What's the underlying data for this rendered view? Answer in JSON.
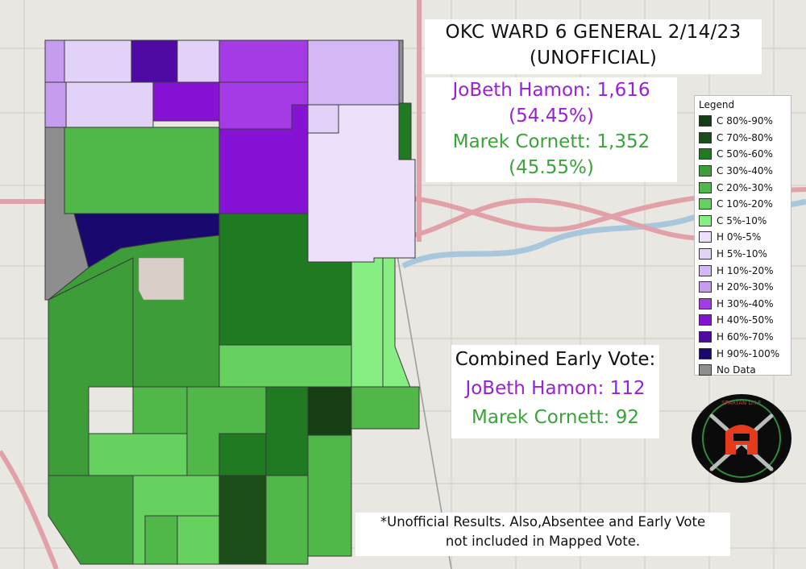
{
  "title": {
    "line1": "OKC WARD 6 GENERAL 2/14/23",
    "line2": "(UNOFFICIAL)"
  },
  "results": {
    "hamon_line": "JoBeth Hamon: 1,616",
    "hamon_pct": "(54.45%)",
    "cornett_line": "Marek Cornett: 1,352",
    "cornett_pct": "(45.55%)"
  },
  "early_vote": {
    "heading": "Combined Early Vote:",
    "hamon_line": "JoBeth Hamon: 112",
    "cornett_line": "Marek Cornett: 92"
  },
  "legend": {
    "title": "Legend",
    "items": [
      {
        "label": "C 80%-90%",
        "color": "#163d14"
      },
      {
        "label": "C 70%-80%",
        "color": "#1b4d19"
      },
      {
        "label": "C 50%-60%",
        "color": "#1f7a21"
      },
      {
        "label": "C 30%-40%",
        "color": "#3d9e39"
      },
      {
        "label": "C 20%-30%",
        "color": "#4fb848"
      },
      {
        "label": "C 10%-20%",
        "color": "#67d160"
      },
      {
        "label": "C 5%-10%",
        "color": "#86ee83"
      },
      {
        "label": "H 0%-5%",
        "color": "#ece0fb"
      },
      {
        "label": "H 5%-10%",
        "color": "#e2d2f8"
      },
      {
        "label": "H 10%-20%",
        "color": "#d4b8f5"
      },
      {
        "label": "H 20%-30%",
        "color": "#c59cf0"
      },
      {
        "label": "H 30%-40%",
        "color": "#a43be4"
      },
      {
        "label": "H 40%-50%",
        "color": "#8612d6"
      },
      {
        "label": "H 60%-70%",
        "color": "#4f0aa3"
      },
      {
        "label": "H 90%-100%",
        "color": "#19086e"
      },
      {
        "label": "No Data",
        "color": "#8e8e8e"
      }
    ]
  },
  "note": {
    "line1": "*Unofficial Results. Also,Absentee and Early Vote",
    "line2": "not included in Mapped Vote."
  },
  "logo": {
    "text": "SPARTAN D.I.E"
  },
  "colors": {
    "hamon": "#9b1fd6",
    "cornett": "#3aa33a",
    "basemap": "#e8e6e1",
    "highway": "#e2a0a8",
    "river": "#a9c7dc"
  }
}
